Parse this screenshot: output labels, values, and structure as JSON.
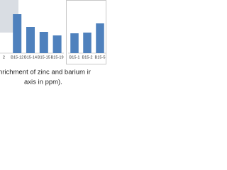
{
  "chart_data": [
    {
      "type": "bar",
      "categories": [
        "2",
        "B15-12",
        "B15-14",
        "B15-15",
        "B15-19"
      ],
      "values": [
        null,
        55,
        37,
        30,
        25
      ],
      "color": "#4f81bd",
      "ylim": [
        0,
        60
      ]
    },
    {
      "type": "bar",
      "categories": [
        "B15-1",
        "B15-2",
        "B15-5"
      ],
      "values": [
        28,
        29,
        42
      ],
      "color": "#4f81bd",
      "ylim": [
        0,
        60
      ]
    }
  ],
  "caption": [
    "nrichment of zinc and barium ir",
    "axis in ppm)."
  ]
}
